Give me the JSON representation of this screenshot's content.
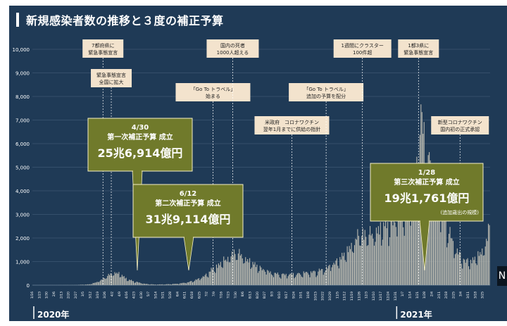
{
  "title": "新規感染者数の推移と３度の補正予算",
  "year_labels": [
    "2020年",
    "2021年"
  ],
  "next_icon": "N",
  "colors": {
    "background": "#1f3a56",
    "bars": "#b9b9b0",
    "gridline": "#4c6580",
    "callout_box": "#707a2b",
    "note_box": "#f3e3cd",
    "dashed_line": "#ffffff"
  },
  "events": [
    {
      "date_index": 68,
      "lines": [
        "7都府県に",
        "緊急事態宣言"
      ]
    },
    {
      "date_index": 76,
      "lines": [
        "緊急事態宣言",
        "全国に拡大"
      ]
    },
    {
      "date_index": 174,
      "lines": [
        "「Go To トラベル」",
        "始まる"
      ]
    },
    {
      "date_index": 193,
      "lines": [
        "国内の死者",
        "1000人超える"
      ]
    },
    {
      "date_index": 250,
      "lines": [
        "米政府　コロナワクチン",
        "翌年1月までに供給の指針"
      ]
    },
    {
      "date_index": 283,
      "lines": [
        "「Go To トラベル」",
        "追加の予算を配分"
      ]
    },
    {
      "date_index": 318,
      "lines": [
        "1週間にクラスター",
        "100件超"
      ]
    },
    {
      "date_index": 372,
      "lines": [
        "1都3県に",
        "緊急事態宣言"
      ]
    },
    {
      "date_index": 412,
      "lines": [
        "新型コロナワクチン",
        "国内初の正式承認"
      ]
    }
  ],
  "budgets": [
    {
      "date": "4/30",
      "label": "第一次補正予算 成立",
      "amount": "25兆6,914億円",
      "note": ""
    },
    {
      "date": "6/12",
      "label": "第二次補正予算 成立",
      "amount": "31兆9,114億円",
      "note": ""
    },
    {
      "date": "1/28",
      "label": "第三次補正予算 成立",
      "amount": "19兆1,761億円",
      "note": "(追加歳出の規模)"
    }
  ],
  "chart_data": {
    "type": "bar",
    "title": "新規感染者数の推移と３度の補正予算",
    "ylim": [
      0,
      10000
    ],
    "yticks": [
      0,
      1000,
      2000,
      3000,
      4000,
      5000,
      6000,
      7000,
      8000,
      9000,
      10000
    ],
    "ytick_labels": [
      "0",
      "1,000",
      "2,000",
      "3,000",
      "4,000",
      "5,000",
      "6,000",
      "7,000",
      "8,000",
      "9,000",
      "10,000"
    ],
    "xtick_labels": [
      "1/16",
      "1/23",
      "1/30",
      "2/6",
      "2/13",
      "2/20",
      "2/27",
      "3/5",
      "3/12",
      "3/19",
      "3/26",
      "4/2",
      "4/9",
      "4/16",
      "4/23",
      "4/30",
      "5/7",
      "5/14",
      "5/21",
      "5/28",
      "6/4",
      "6/11",
      "6/18",
      "6/25",
      "7/2",
      "7/9",
      "7/16",
      "7/23",
      "7/30",
      "8/6",
      "8/13",
      "8/20",
      "8/27",
      "9/3",
      "9/10",
      "9/17",
      "9/24",
      "10/1",
      "10/8",
      "10/15",
      "10/22",
      "10/29",
      "11/5",
      "11/12",
      "11/19",
      "11/26",
      "12/3",
      "12/10",
      "12/17",
      "12/24",
      "12/31",
      "1/7",
      "1/14",
      "1/21",
      "1/28",
      "2/4",
      "2/11",
      "2/18",
      "2/25",
      "3/4",
      "3/11",
      "3/18",
      "3/25"
    ],
    "x_start": "2020-01-16",
    "x_end": "2021-03-31",
    "days": 441,
    "anchors": [
      [
        0,
        0
      ],
      [
        40,
        5
      ],
      [
        55,
        40
      ],
      [
        62,
        150
      ],
      [
        68,
        300
      ],
      [
        74,
        500
      ],
      [
        80,
        600
      ],
      [
        86,
        450
      ],
      [
        92,
        250
      ],
      [
        100,
        150
      ],
      [
        108,
        60
      ],
      [
        118,
        30
      ],
      [
        128,
        40
      ],
      [
        138,
        60
      ],
      [
        148,
        120
      ],
      [
        158,
        250
      ],
      [
        166,
        450
      ],
      [
        172,
        700
      ],
      [
        178,
        900
      ],
      [
        186,
        1200
      ],
      [
        193,
        1500
      ],
      [
        200,
        1450
      ],
      [
        206,
        1200
      ],
      [
        212,
        1000
      ],
      [
        220,
        800
      ],
      [
        228,
        600
      ],
      [
        236,
        500
      ],
      [
        244,
        500
      ],
      [
        252,
        500
      ],
      [
        260,
        550
      ],
      [
        268,
        600
      ],
      [
        276,
        650
      ],
      [
        284,
        800
      ],
      [
        292,
        1100
      ],
      [
        300,
        1400
      ],
      [
        306,
        1800
      ],
      [
        312,
        2200
      ],
      [
        318,
        2400
      ],
      [
        324,
        2300
      ],
      [
        330,
        2500
      ],
      [
        338,
        2700
      ],
      [
        346,
        3000
      ],
      [
        352,
        3200
      ],
      [
        358,
        3500
      ],
      [
        364,
        4000
      ],
      [
        368,
        4500
      ],
      [
        371,
        6000
      ],
      [
        374,
        7850
      ],
      [
        377,
        6500
      ],
      [
        380,
        6000
      ],
      [
        386,
        5000
      ],
      [
        392,
        4000
      ],
      [
        398,
        3000
      ],
      [
        404,
        2000
      ],
      [
        410,
        1500
      ],
      [
        416,
        1200
      ],
      [
        422,
        1100
      ],
      [
        428,
        1300
      ],
      [
        434,
        1700
      ],
      [
        438,
        2200
      ],
      [
        440,
        2800
      ]
    ]
  }
}
